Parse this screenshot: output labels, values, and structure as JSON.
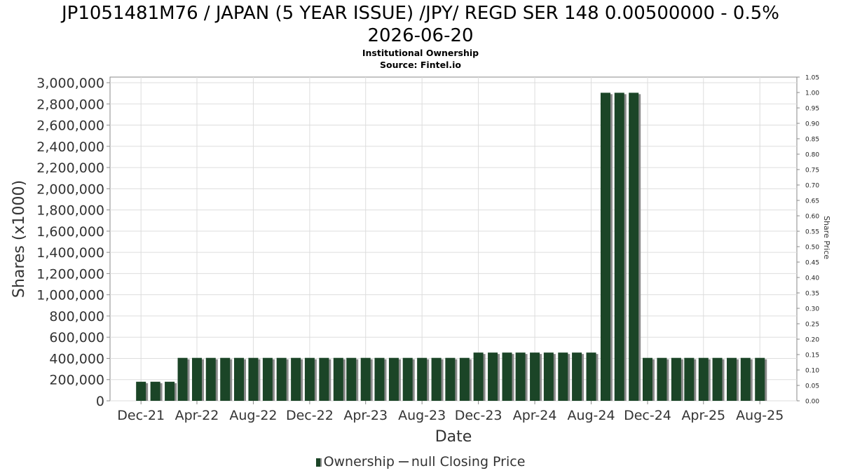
{
  "title_lines": [
    "JP1051481M76 / JAPAN (5 YEAR ISSUE) /JPY/ REGD SER 148 0.00500000 - 0.5%",
    "2026-06-20"
  ],
  "subtitle": "Institutional Ownership",
  "source": "Source: Fintel.io",
  "legend": {
    "ownership_label": "Ownership",
    "price_label": "null Closing Price"
  },
  "colors": {
    "bar": "#1b4527",
    "bar_shadow": "#8a8a8a",
    "grid": "#dddddd",
    "axis": "#888888"
  },
  "chart_data": {
    "type": "bar",
    "title": "JP1051481M76 / JAPAN (5 YEAR ISSUE) /JPY/ REGD SER 148 0.00500000 - 0.5% 2026-06-20",
    "xlabel": "Date",
    "ylabel": "Shares (x1000)",
    "y2label": "Share Price",
    "ylim": [
      0,
      3000000
    ],
    "y2lim": [
      0,
      1.05
    ],
    "y_ticks": [
      "0",
      "200,000",
      "400,000",
      "600,000",
      "800,000",
      "1,000,000",
      "1,200,000",
      "1,400,000",
      "1,600,000",
      "1,800,000",
      "2,000,000",
      "2,200,000",
      "2,400,000",
      "2,600,000",
      "2,800,000",
      "3,000,000"
    ],
    "y2_ticks": [
      "0.00",
      "0.05",
      "0.10",
      "0.15",
      "0.20",
      "0.25",
      "0.30",
      "0.35",
      "0.40",
      "0.45",
      "0.50",
      "0.55",
      "0.60",
      "0.65",
      "0.70",
      "0.75",
      "0.80",
      "0.85",
      "0.90",
      "0.95",
      "1.00",
      "1.05"
    ],
    "x_ticks": [
      "Dec-21",
      "Apr-22",
      "Aug-22",
      "Dec-22",
      "Apr-23",
      "Aug-23",
      "Dec-23",
      "Apr-24",
      "Aug-24",
      "Dec-24",
      "Apr-25",
      "Aug-25"
    ],
    "grid": true,
    "legend_position": "bottom",
    "series": [
      {
        "name": "Ownership",
        "x": [
          "2021-12-01",
          "2022-01-01",
          "2022-02-01",
          "2022-03-01",
          "2022-04-01",
          "2022-05-01",
          "2022-06-01",
          "2022-07-01",
          "2022-08-01",
          "2022-09-01",
          "2022-10-01",
          "2022-11-01",
          "2022-12-01",
          "2023-01-01",
          "2023-02-01",
          "2023-03-01",
          "2023-04-01",
          "2023-05-01",
          "2023-06-01",
          "2023-07-01",
          "2023-08-01",
          "2023-09-01",
          "2023-10-01",
          "2023-11-01",
          "2023-12-01",
          "2024-01-01",
          "2024-02-01",
          "2024-03-01",
          "2024-04-01",
          "2024-05-01",
          "2024-06-01",
          "2024-07-01",
          "2024-08-01",
          "2024-09-01",
          "2024-10-01",
          "2024-11-01",
          "2024-12-01",
          "2025-01-01",
          "2025-02-01",
          "2025-03-01",
          "2025-04-01",
          "2025-05-01",
          "2025-06-01",
          "2025-07-01",
          "2025-08-01"
        ],
        "values": [
          180000,
          180000,
          180000,
          405000,
          405000,
          405000,
          405000,
          405000,
          405000,
          405000,
          405000,
          405000,
          405000,
          405000,
          405000,
          405000,
          405000,
          405000,
          405000,
          405000,
          405000,
          405000,
          405000,
          405000,
          455000,
          455000,
          455000,
          455000,
          455000,
          455000,
          455000,
          455000,
          455000,
          2905000,
          2905000,
          2905000,
          405000,
          405000,
          405000,
          405000,
          405000,
          405000,
          405000,
          405000,
          405000
        ]
      },
      {
        "name": "null Closing Price",
        "values": []
      }
    ]
  }
}
